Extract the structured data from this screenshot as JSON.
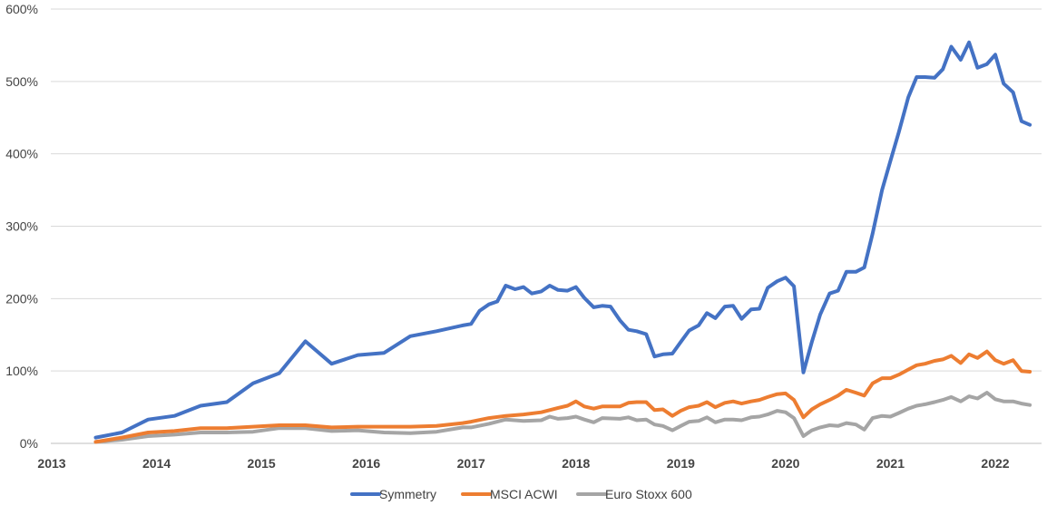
{
  "chart_data": {
    "type": "line",
    "title": "",
    "xlabel": "",
    "ylabel": "",
    "x_range": [
      2013,
      2022.5
    ],
    "ylim": [
      0,
      600
    ],
    "x_ticks": [
      "2013",
      "2014",
      "2015",
      "2016",
      "2017",
      "2018",
      "2019",
      "2020",
      "2021",
      "2022"
    ],
    "y_ticks": [
      "0%",
      "100%",
      "200%",
      "300%",
      "400%",
      "500%",
      "600%"
    ],
    "grid": "horizontal",
    "legend": "bottom",
    "series": [
      {
        "name": "Symmetry",
        "color": "#4472C4",
        "points": [
          [
            2013.42,
            8
          ],
          [
            2013.67,
            15
          ],
          [
            2013.92,
            33
          ],
          [
            2014.17,
            38
          ],
          [
            2014.42,
            52
          ],
          [
            2014.67,
            57
          ],
          [
            2014.92,
            83
          ],
          [
            2015.17,
            97
          ],
          [
            2015.42,
            141
          ],
          [
            2015.67,
            110
          ],
          [
            2015.92,
            122
          ],
          [
            2016.17,
            125
          ],
          [
            2016.42,
            148
          ],
          [
            2016.67,
            155
          ],
          [
            2016.92,
            163
          ],
          [
            2017.0,
            165
          ],
          [
            2017.08,
            183
          ],
          [
            2017.17,
            192
          ],
          [
            2017.25,
            196
          ],
          [
            2017.33,
            218
          ],
          [
            2017.42,
            213
          ],
          [
            2017.5,
            216
          ],
          [
            2017.58,
            207
          ],
          [
            2017.67,
            210
          ],
          [
            2017.75,
            218
          ],
          [
            2017.83,
            212
          ],
          [
            2017.92,
            211
          ],
          [
            2018.0,
            216
          ],
          [
            2018.08,
            201
          ],
          [
            2018.17,
            188
          ],
          [
            2018.25,
            190
          ],
          [
            2018.33,
            189
          ],
          [
            2018.42,
            170
          ],
          [
            2018.5,
            157
          ],
          [
            2018.58,
            155
          ],
          [
            2018.67,
            151
          ],
          [
            2018.75,
            120
          ],
          [
            2018.83,
            123
          ],
          [
            2018.92,
            124
          ],
          [
            2019.0,
            140
          ],
          [
            2019.08,
            156
          ],
          [
            2019.17,
            163
          ],
          [
            2019.25,
            180
          ],
          [
            2019.33,
            173
          ],
          [
            2019.42,
            189
          ],
          [
            2019.5,
            190
          ],
          [
            2019.58,
            172
          ],
          [
            2019.67,
            185
          ],
          [
            2019.75,
            186
          ],
          [
            2019.83,
            215
          ],
          [
            2019.92,
            224
          ],
          [
            2020.0,
            229
          ],
          [
            2020.08,
            217
          ],
          [
            2020.17,
            98
          ],
          [
            2020.25,
            140
          ],
          [
            2020.33,
            178
          ],
          [
            2020.42,
            207
          ],
          [
            2020.5,
            211
          ],
          [
            2020.58,
            237
          ],
          [
            2020.67,
            237
          ],
          [
            2020.75,
            243
          ],
          [
            2020.83,
            290
          ],
          [
            2020.92,
            350
          ],
          [
            2021.0,
            390
          ],
          [
            2021.08,
            430
          ],
          [
            2021.17,
            478
          ],
          [
            2021.25,
            506
          ],
          [
            2021.33,
            506
          ],
          [
            2021.42,
            505
          ],
          [
            2021.5,
            517
          ],
          [
            2021.58,
            548
          ],
          [
            2021.67,
            530
          ],
          [
            2021.75,
            554
          ],
          [
            2021.83,
            519
          ],
          [
            2021.92,
            524
          ],
          [
            2022.0,
            537
          ],
          [
            2022.08,
            497
          ],
          [
            2022.17,
            485
          ],
          [
            2022.25,
            445
          ],
          [
            2022.33,
            440
          ]
        ]
      },
      {
        "name": "MSCI ACWI",
        "color": "#ED7D31",
        "points": [
          [
            2013.42,
            2
          ],
          [
            2013.67,
            8
          ],
          [
            2013.92,
            15
          ],
          [
            2014.17,
            17
          ],
          [
            2014.42,
            21
          ],
          [
            2014.67,
            21
          ],
          [
            2014.92,
            23
          ],
          [
            2015.17,
            25
          ],
          [
            2015.42,
            25
          ],
          [
            2015.67,
            22
          ],
          [
            2015.92,
            23
          ],
          [
            2016.17,
            23
          ],
          [
            2016.42,
            23
          ],
          [
            2016.67,
            24
          ],
          [
            2016.92,
            28
          ],
          [
            2017.0,
            30
          ],
          [
            2017.17,
            35
          ],
          [
            2017.33,
            38
          ],
          [
            2017.5,
            40
          ],
          [
            2017.67,
            43
          ],
          [
            2017.83,
            49
          ],
          [
            2017.92,
            52
          ],
          [
            2018.0,
            58
          ],
          [
            2018.08,
            51
          ],
          [
            2018.17,
            48
          ],
          [
            2018.25,
            51
          ],
          [
            2018.42,
            51
          ],
          [
            2018.5,
            56
          ],
          [
            2018.58,
            57
          ],
          [
            2018.67,
            57
          ],
          [
            2018.75,
            46
          ],
          [
            2018.83,
            47
          ],
          [
            2018.92,
            38
          ],
          [
            2019.0,
            45
          ],
          [
            2019.08,
            50
          ],
          [
            2019.17,
            52
          ],
          [
            2019.25,
            57
          ],
          [
            2019.33,
            50
          ],
          [
            2019.42,
            56
          ],
          [
            2019.5,
            58
          ],
          [
            2019.58,
            55
          ],
          [
            2019.67,
            58
          ],
          [
            2019.75,
            60
          ],
          [
            2019.83,
            64
          ],
          [
            2019.92,
            68
          ],
          [
            2020.0,
            69
          ],
          [
            2020.08,
            60
          ],
          [
            2020.17,
            36
          ],
          [
            2020.25,
            47
          ],
          [
            2020.33,
            54
          ],
          [
            2020.42,
            60
          ],
          [
            2020.5,
            66
          ],
          [
            2020.58,
            74
          ],
          [
            2020.67,
            70
          ],
          [
            2020.75,
            66
          ],
          [
            2020.83,
            83
          ],
          [
            2020.92,
            90
          ],
          [
            2021.0,
            90
          ],
          [
            2021.08,
            95
          ],
          [
            2021.17,
            102
          ],
          [
            2021.25,
            108
          ],
          [
            2021.33,
            110
          ],
          [
            2021.42,
            114
          ],
          [
            2021.5,
            116
          ],
          [
            2021.58,
            121
          ],
          [
            2021.67,
            111
          ],
          [
            2021.75,
            123
          ],
          [
            2021.83,
            118
          ],
          [
            2021.92,
            127
          ],
          [
            2022.0,
            115
          ],
          [
            2022.08,
            110
          ],
          [
            2022.17,
            115
          ],
          [
            2022.25,
            100
          ],
          [
            2022.33,
            99
          ]
        ]
      },
      {
        "name": "Euro Stoxx 600",
        "color": "#A5A5A5",
        "points": [
          [
            2013.42,
            2
          ],
          [
            2013.67,
            5
          ],
          [
            2013.92,
            10
          ],
          [
            2014.17,
            12
          ],
          [
            2014.42,
            15
          ],
          [
            2014.67,
            15
          ],
          [
            2014.92,
            16
          ],
          [
            2015.17,
            21
          ],
          [
            2015.42,
            21
          ],
          [
            2015.67,
            17
          ],
          [
            2015.92,
            18
          ],
          [
            2016.17,
            15
          ],
          [
            2016.42,
            14
          ],
          [
            2016.67,
            16
          ],
          [
            2016.92,
            22
          ],
          [
            2017.0,
            22
          ],
          [
            2017.17,
            27
          ],
          [
            2017.33,
            33
          ],
          [
            2017.5,
            31
          ],
          [
            2017.67,
            32
          ],
          [
            2017.75,
            37
          ],
          [
            2017.83,
            34
          ],
          [
            2017.92,
            35
          ],
          [
            2018.0,
            37
          ],
          [
            2018.08,
            33
          ],
          [
            2018.17,
            29
          ],
          [
            2018.25,
            35
          ],
          [
            2018.42,
            34
          ],
          [
            2018.5,
            36
          ],
          [
            2018.58,
            32
          ],
          [
            2018.67,
            33
          ],
          [
            2018.75,
            26
          ],
          [
            2018.83,
            24
          ],
          [
            2018.92,
            18
          ],
          [
            2019.0,
            24
          ],
          [
            2019.08,
            30
          ],
          [
            2019.17,
            31
          ],
          [
            2019.25,
            36
          ],
          [
            2019.33,
            29
          ],
          [
            2019.42,
            33
          ],
          [
            2019.5,
            33
          ],
          [
            2019.58,
            32
          ],
          [
            2019.67,
            36
          ],
          [
            2019.75,
            37
          ],
          [
            2019.83,
            40
          ],
          [
            2019.92,
            45
          ],
          [
            2020.0,
            43
          ],
          [
            2020.08,
            35
          ],
          [
            2020.17,
            10
          ],
          [
            2020.25,
            18
          ],
          [
            2020.33,
            22
          ],
          [
            2020.42,
            25
          ],
          [
            2020.5,
            24
          ],
          [
            2020.58,
            28
          ],
          [
            2020.67,
            26
          ],
          [
            2020.75,
            19
          ],
          [
            2020.83,
            35
          ],
          [
            2020.92,
            38
          ],
          [
            2021.0,
            37
          ],
          [
            2021.08,
            42
          ],
          [
            2021.17,
            48
          ],
          [
            2021.25,
            52
          ],
          [
            2021.33,
            54
          ],
          [
            2021.42,
            57
          ],
          [
            2021.5,
            60
          ],
          [
            2021.58,
            64
          ],
          [
            2021.67,
            58
          ],
          [
            2021.75,
            65
          ],
          [
            2021.83,
            62
          ],
          [
            2021.92,
            70
          ],
          [
            2022.0,
            61
          ],
          [
            2022.08,
            58
          ],
          [
            2022.17,
            58
          ],
          [
            2022.25,
            55
          ],
          [
            2022.33,
            53
          ]
        ]
      }
    ]
  }
}
